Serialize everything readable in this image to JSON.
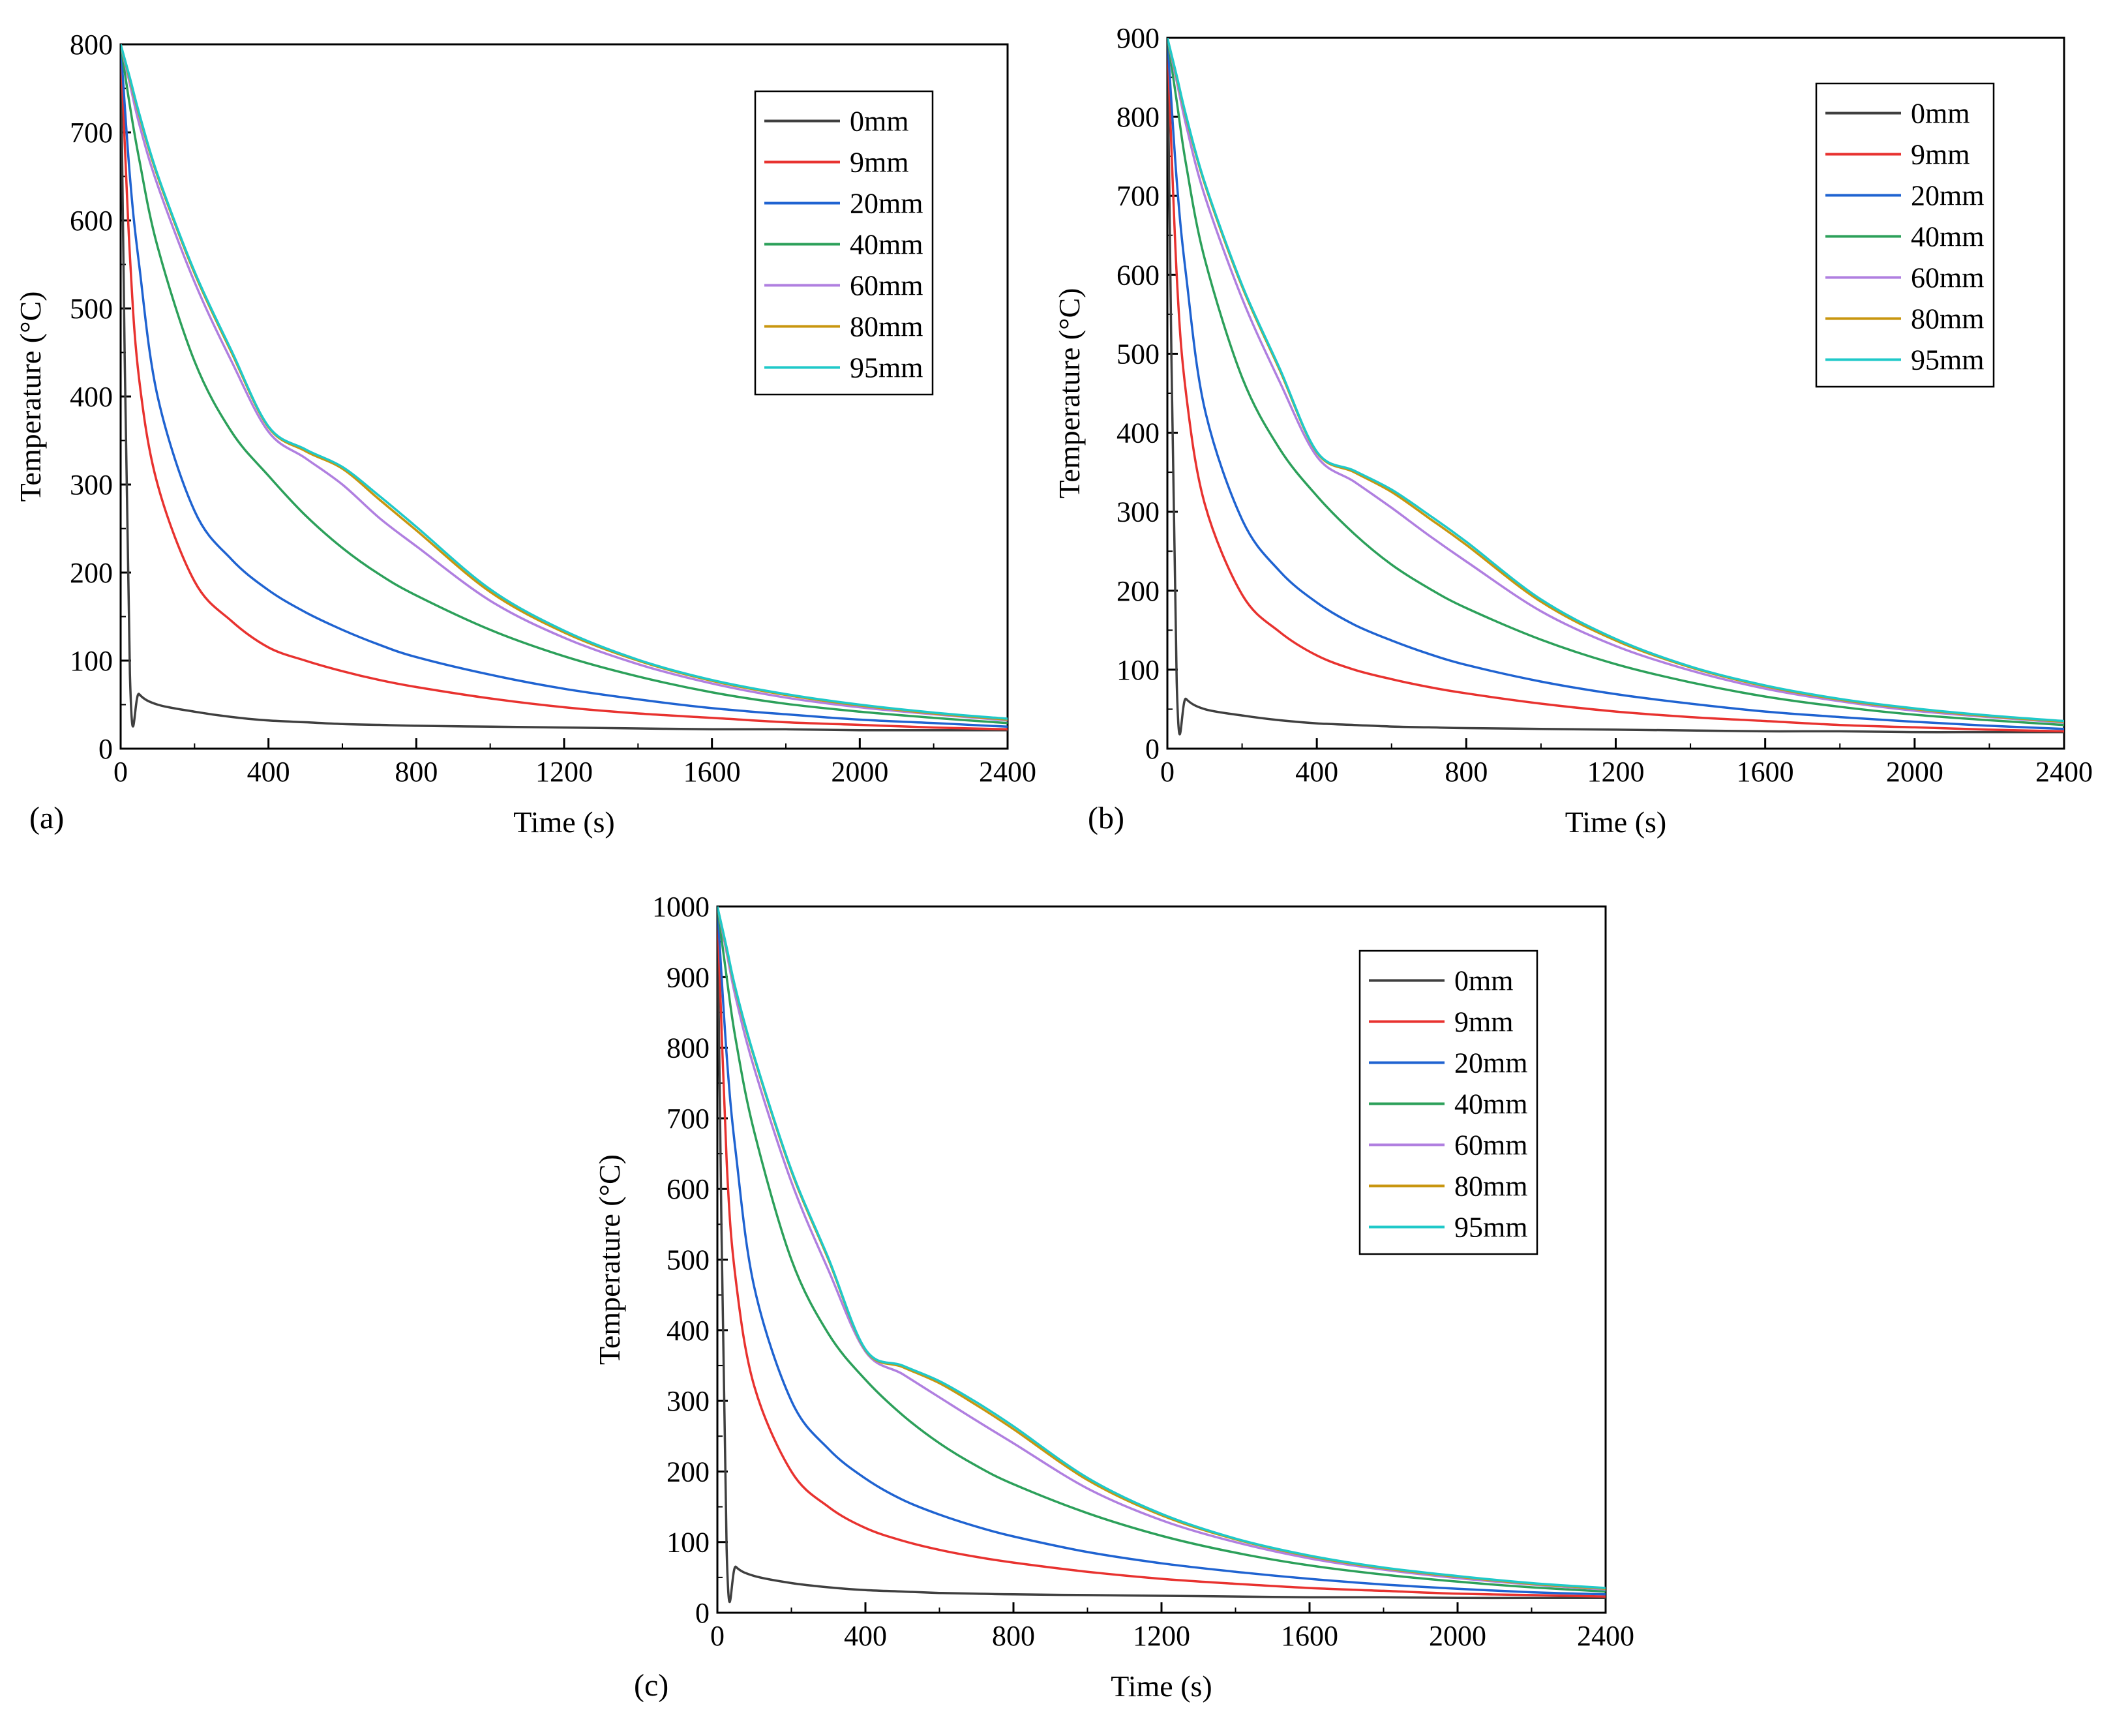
{
  "chart_data": [
    {
      "panel": "(a)",
      "type": "line",
      "xlabel": "Time (s)",
      "ylabel": "Temperature (°C)",
      "xlim": [
        0,
        2400
      ],
      "ylim": [
        0,
        800
      ],
      "xticks": [
        0,
        400,
        800,
        1200,
        1600,
        2000,
        2400
      ],
      "yticks": [
        0,
        100,
        200,
        300,
        400,
        500,
        600,
        700,
        800
      ],
      "legend_position": "top-right",
      "x": [
        0,
        25,
        50,
        100,
        200,
        300,
        400,
        500,
        600,
        700,
        800,
        1000,
        1200,
        1400,
        1600,
        1800,
        2000,
        2200,
        2400
      ],
      "series": [
        {
          "name": "0mm",
          "color": "#3f3f3f",
          "values": [
            800,
            85,
            62,
            50,
            42,
            36,
            32,
            30,
            28,
            27,
            26,
            25,
            24,
            23,
            22,
            22,
            21,
            21,
            21
          ]
        },
        {
          "name": "9mm",
          "color": "#e8322f",
          "values": [
            800,
            560,
            420,
            300,
            190,
            145,
            115,
            100,
            88,
            78,
            70,
            57,
            47,
            40,
            35,
            30,
            27,
            24,
            22
          ]
        },
        {
          "name": "20mm",
          "color": "#1f63d1",
          "values": [
            800,
            650,
            550,
            400,
            270,
            215,
            180,
            155,
            135,
            118,
            104,
            84,
            68,
            56,
            46,
            39,
            33,
            29,
            25
          ]
        },
        {
          "name": "40mm",
          "color": "#2ca05a",
          "values": [
            800,
            730,
            670,
            570,
            440,
            360,
            310,
            265,
            228,
            198,
            174,
            135,
            105,
            82,
            64,
            51,
            42,
            35,
            29
          ]
        },
        {
          "name": "60mm",
          "color": "#b07fe0",
          "values": [
            800,
            755,
            710,
            640,
            530,
            440,
            360,
            330,
            300,
            262,
            230,
            168,
            126,
            96,
            74,
            58,
            47,
            39,
            32
          ]
        },
        {
          "name": "80mm",
          "color": "#c8960f",
          "values": [
            800,
            760,
            720,
            650,
            540,
            450,
            365,
            338,
            318,
            283,
            248,
            178,
            132,
            100,
            77,
            61,
            49,
            40,
            33
          ]
        },
        {
          "name": "95mm",
          "color": "#1fc9c9",
          "values": [
            800,
            762,
            722,
            652,
            542,
            452,
            366,
            340,
            320,
            287,
            252,
            181,
            134,
            101,
            78,
            62,
            50,
            41,
            34
          ]
        }
      ]
    },
    {
      "panel": "(b)",
      "type": "line",
      "xlabel": "Time (s)",
      "ylabel": "Temperature (°C)",
      "xlim": [
        0,
        2400
      ],
      "ylim": [
        0,
        900
      ],
      "xticks": [
        0,
        400,
        800,
        1200,
        1600,
        2000,
        2400
      ],
      "yticks": [
        0,
        100,
        200,
        300,
        400,
        500,
        600,
        700,
        800,
        900
      ],
      "legend_position": "top-right",
      "x": [
        0,
        25,
        50,
        100,
        200,
        300,
        400,
        500,
        600,
        700,
        800,
        1000,
        1200,
        1400,
        1600,
        1800,
        2000,
        2200,
        2400
      ],
      "series": [
        {
          "name": "0mm",
          "color": "#3f3f3f",
          "values": [
            900,
            85,
            63,
            50,
            42,
            36,
            32,
            30,
            28,
            27,
            26,
            25,
            24,
            23,
            22,
            22,
            21,
            21,
            21
          ]
        },
        {
          "name": "9mm",
          "color": "#e8322f",
          "values": [
            900,
            600,
            450,
            310,
            195,
            148,
            118,
            100,
            88,
            78,
            70,
            57,
            47,
            40,
            35,
            30,
            27,
            24,
            22
          ]
        },
        {
          "name": "20mm",
          "color": "#1f63d1",
          "values": [
            900,
            720,
            600,
            430,
            290,
            225,
            185,
            157,
            137,
            120,
            106,
            85,
            69,
            57,
            47,
            40,
            34,
            29,
            25
          ]
        },
        {
          "name": "40mm",
          "color": "#2ca05a",
          "values": [
            900,
            820,
            740,
            620,
            470,
            380,
            320,
            272,
            233,
            203,
            178,
            138,
            107,
            84,
            66,
            53,
            43,
            36,
            30
          ]
        },
        {
          "name": "60mm",
          "color": "#b07fe0",
          "values": [
            900,
            845,
            790,
            700,
            570,
            465,
            370,
            338,
            305,
            270,
            237,
            174,
            130,
            99,
            76,
            60,
            48,
            40,
            33
          ]
        },
        {
          "name": "80mm",
          "color": "#c8960f",
          "values": [
            900,
            850,
            800,
            715,
            585,
            480,
            375,
            350,
            325,
            292,
            258,
            186,
            137,
            103,
            79,
            62,
            50,
            41,
            34
          ]
        },
        {
          "name": "95mm",
          "color": "#1fc9c9",
          "values": [
            900,
            852,
            802,
            717,
            587,
            482,
            376,
            352,
            328,
            296,
            262,
            189,
            139,
            104,
            80,
            63,
            51,
            42,
            35
          ]
        }
      ]
    },
    {
      "panel": "(c)",
      "type": "line",
      "xlabel": "Time (s)",
      "ylabel": "Temperature (°C)",
      "xlim": [
        0,
        2400
      ],
      "ylim": [
        0,
        1000
      ],
      "xticks": [
        0,
        400,
        800,
        1200,
        1600,
        2000,
        2400
      ],
      "yticks": [
        0,
        100,
        200,
        300,
        400,
        500,
        600,
        700,
        800,
        900,
        1000
      ],
      "legend_position": "top-right",
      "x": [
        0,
        25,
        50,
        100,
        200,
        300,
        400,
        500,
        600,
        700,
        800,
        1000,
        1200,
        1400,
        1600,
        1800,
        2000,
        2200,
        2400
      ],
      "series": [
        {
          "name": "0mm",
          "color": "#3f3f3f",
          "values": [
            1000,
            90,
            65,
            52,
            42,
            36,
            32,
            30,
            28,
            27,
            26,
            25,
            24,
            23,
            22,
            22,
            21,
            21,
            21
          ]
        },
        {
          "name": "9mm",
          "color": "#e8322f",
          "values": [
            1000,
            640,
            470,
            320,
            200,
            150,
            120,
            102,
            89,
            79,
            71,
            58,
            48,
            41,
            35,
            31,
            27,
            25,
            23
          ]
        },
        {
          "name": "20mm",
          "color": "#1f63d1",
          "values": [
            1000,
            790,
            650,
            460,
            300,
            232,
            190,
            160,
            139,
            122,
            108,
            86,
            70,
            58,
            48,
            40,
            34,
            29,
            26
          ]
        },
        {
          "name": "40mm",
          "color": "#2ca05a",
          "values": [
            1000,
            900,
            810,
            680,
            500,
            395,
            330,
            280,
            240,
            208,
            182,
            141,
            109,
            85,
            67,
            54,
            44,
            36,
            30
          ]
        },
        {
          "name": "60mm",
          "color": "#b07fe0",
          "values": [
            1000,
            935,
            870,
            770,
            610,
            485,
            370,
            338,
            305,
            272,
            240,
            176,
            131,
            100,
            77,
            61,
            49,
            40,
            33
          ]
        },
        {
          "name": "80mm",
          "color": "#c8960f",
          "values": [
            1000,
            940,
            880,
            785,
            625,
            500,
            372,
            348,
            325,
            294,
            260,
            188,
            138,
            104,
            80,
            63,
            51,
            41,
            34
          ]
        },
        {
          "name": "95mm",
          "color": "#1fc9c9",
          "values": [
            1000,
            942,
            882,
            787,
            627,
            502,
            373,
            350,
            328,
            298,
            264,
            191,
            140,
            105,
            81,
            64,
            52,
            42,
            35
          ]
        }
      ]
    }
  ]
}
